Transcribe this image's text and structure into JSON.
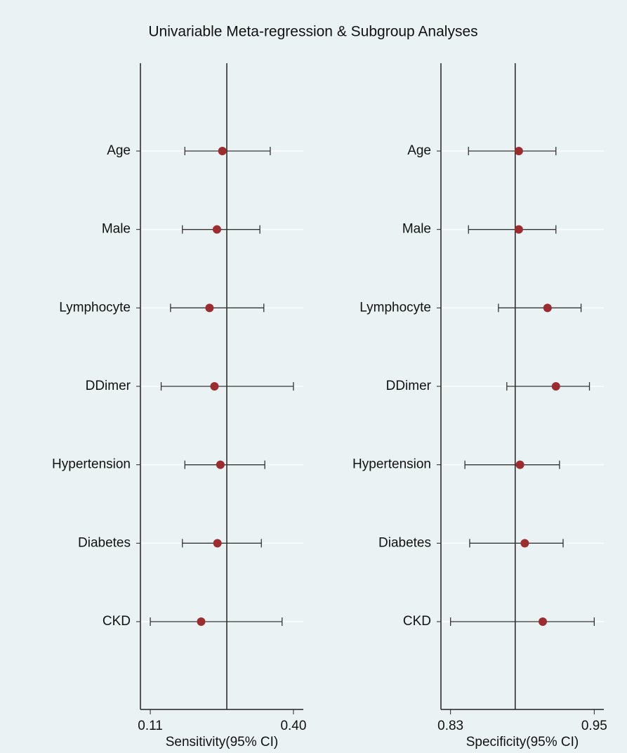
{
  "title": "Univariable Meta-regression & Subgroup Analyses",
  "chart_data": [
    {
      "type": "forest",
      "xlabel": "Sensitivity(95% CI)",
      "categories": [
        "Age",
        "Male",
        "Lymphocyte",
        "DDimer",
        "Hypertension",
        "Diabetes",
        "CKD"
      ],
      "values": [
        0.256,
        0.245,
        0.23,
        0.24,
        0.252,
        0.246,
        0.213
      ],
      "lower": [
        0.18,
        0.175,
        0.151,
        0.132,
        0.18,
        0.175,
        0.11
      ],
      "upper": [
        0.353,
        0.332,
        0.34,
        0.4,
        0.342,
        0.335,
        0.377
      ],
      "reference_line": 0.265,
      "color": "#9b2d30",
      "xlim": [
        0.09,
        0.42
      ],
      "xticks": [
        0.11,
        {
          "value": 0.4,
          "label": "0.40"
        }
      ]
    },
    {
      "type": "forest",
      "xlabel": "Specificity(95% CI)",
      "categories": [
        "Age",
        "Male",
        "Lymphocyte",
        "DDimer",
        "Hypertension",
        "Diabetes",
        "CKD"
      ],
      "values": [
        0.887,
        0.887,
        0.911,
        0.918,
        0.888,
        0.892,
        0.907
      ],
      "lower": [
        0.845,
        0.845,
        0.87,
        0.877,
        0.842,
        0.846,
        0.83
      ],
      "upper": [
        0.918,
        0.918,
        0.939,
        0.946,
        0.921,
        0.924,
        0.95
      ],
      "reference_line": 0.884,
      "color": "#9b2d30",
      "xlim": [
        0.822,
        0.958
      ],
      "xticks": [
        0.83,
        0.95
      ]
    }
  ]
}
